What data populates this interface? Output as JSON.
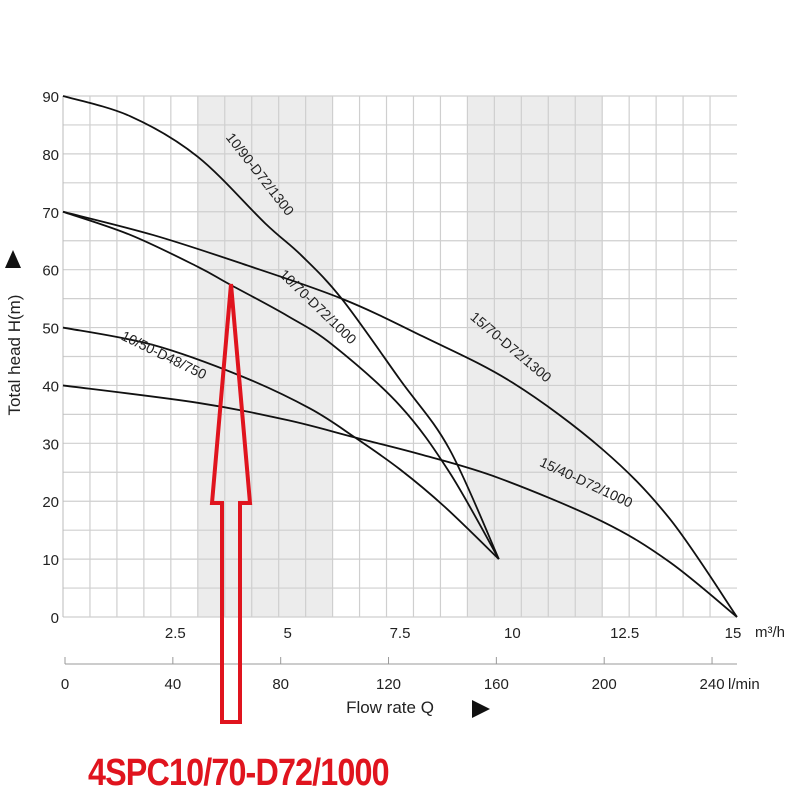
{
  "chart_data": {
    "type": "line",
    "title": "",
    "ylabel": "Total head H(m)",
    "xlabel": "Flow rate Q",
    "x_unit": "m³/h",
    "x2_unit": "l/min",
    "xlim": [
      0,
      15
    ],
    "ylim": [
      0,
      90
    ],
    "grid": true,
    "x_ticks": [
      "2.5",
      "5",
      "7.5",
      "10",
      "12.5",
      "15"
    ],
    "x_tick_values": [
      2.5,
      5,
      7.5,
      10,
      12.5,
      15
    ],
    "x2_ticks": [
      "0",
      "40",
      "80",
      "120",
      "160",
      "200",
      "240"
    ],
    "x2_tick_values": [
      0,
      40,
      80,
      120,
      160,
      200,
      240
    ],
    "y_ticks": [
      "0",
      "10",
      "20",
      "30",
      "40",
      "50",
      "60",
      "70",
      "80",
      "90"
    ],
    "y_tick_values": [
      0,
      10,
      20,
      30,
      40,
      50,
      60,
      70,
      80,
      90
    ],
    "shaded_ranges": [
      [
        3,
        6
      ],
      [
        9,
        12
      ]
    ],
    "series": [
      {
        "name": "10/90-D72/1300",
        "x": [
          0,
          1.5,
          3,
          4.5,
          5.3,
          6.2,
          7.5,
          8.6,
          9.7
        ],
        "y": [
          90,
          86.5,
          79.5,
          68,
          62.5,
          55,
          41,
          29,
          10
        ]
      },
      {
        "name": "10/70-D72/1000",
        "x": [
          0,
          1.5,
          3,
          3.7,
          5,
          6,
          7.5,
          8.6,
          9.7
        ],
        "y": [
          70,
          66,
          60.5,
          57.5,
          52,
          47,
          36.5,
          25,
          10
        ]
      },
      {
        "name": "15/70-D72/1300",
        "x": [
          0,
          2,
          4,
          6.2,
          8,
          10,
          12,
          13.5,
          15
        ],
        "y": [
          70,
          66,
          61,
          55,
          48.5,
          40.5,
          29,
          17,
          0
        ]
      },
      {
        "name": "10/50-D48/750",
        "x": [
          0,
          2,
          4,
          5.5,
          6.5,
          7.5,
          8.5,
          9.7
        ],
        "y": [
          50,
          47,
          41.5,
          36,
          31,
          25.5,
          19,
          10
        ]
      },
      {
        "name": "15/40-D72/1000",
        "x": [
          0,
          3,
          5,
          6.5,
          8,
          9.7,
          12,
          13.5,
          15
        ],
        "y": [
          40,
          37,
          34,
          31,
          28,
          24,
          16.5,
          9.5,
          0
        ]
      }
    ],
    "annotation": "4SPC10/70-D72/1000"
  },
  "colors": {
    "accent": "#e0141e",
    "curve": "#111111",
    "shade": "#ececec",
    "grid": "#cfcfcf"
  }
}
